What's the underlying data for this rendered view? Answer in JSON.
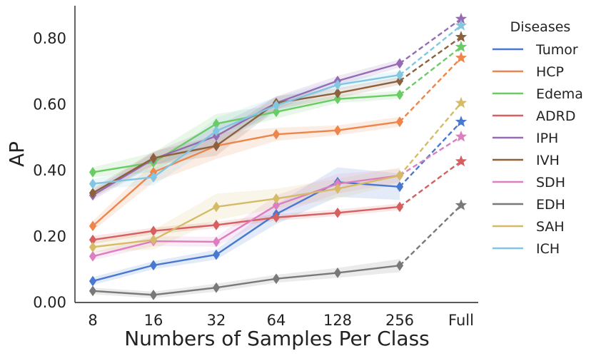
{
  "chart_data": {
    "type": "line",
    "title": "",
    "xlabel": "Numbers of Samples Per Class",
    "ylabel": "AP",
    "categories": [
      "8",
      "16",
      "32",
      "64",
      "128",
      "256",
      "Full"
    ],
    "ylim": [
      0.0,
      0.9
    ],
    "yticks": [
      0.0,
      0.2,
      0.4,
      0.6,
      0.8
    ],
    "ytick_labels": [
      "0.00",
      "0.20",
      "0.40",
      "0.60",
      "0.80"
    ],
    "grid": false,
    "legend": {
      "title": "Diseases",
      "placement": "right-outside"
    },
    "note": "Solid lines with diamond markers for 8-256 samples; dashed line to star marker for Full; shaded bands show variability.",
    "series": [
      {
        "name": "Tumor",
        "color": "#4878d0",
        "values": [
          0.065,
          0.113,
          0.145,
          0.268,
          0.365,
          0.351,
          0.548
        ],
        "band": [
          0.012,
          0.012,
          0.015,
          0.03,
          0.045,
          0.04
        ]
      },
      {
        "name": "HCP",
        "color": "#ee854a",
        "values": [
          0.232,
          0.395,
          0.475,
          0.51,
          0.522,
          0.548,
          0.742
        ],
        "band": [
          0.015,
          0.03,
          0.04,
          0.02,
          0.015,
          0.015
        ]
      },
      {
        "name": "Edema",
        "color": "#6acc64",
        "values": [
          0.395,
          0.425,
          0.542,
          0.578,
          0.617,
          0.63,
          0.775
        ],
        "band": [
          0.015,
          0.03,
          0.03,
          0.02,
          0.012,
          0.012
        ]
      },
      {
        "name": "ADRD",
        "color": "#d65f5f",
        "values": [
          0.19,
          0.217,
          0.235,
          0.258,
          0.272,
          0.29,
          0.428
        ],
        "band": [
          0.012,
          0.01,
          0.01,
          0.01,
          0.01,
          0.01
        ]
      },
      {
        "name": "IPH",
        "color": "#956cb4",
        "values": [
          0.325,
          0.435,
          0.505,
          0.605,
          0.672,
          0.725,
          0.86
        ],
        "band": [
          0.015,
          0.02,
          0.03,
          0.02,
          0.015,
          0.012
        ]
      },
      {
        "name": "IVH",
        "color": "#8c613c",
        "values": [
          0.332,
          0.438,
          0.475,
          0.605,
          0.635,
          0.672,
          0.805
        ],
        "band": [
          0.015,
          0.02,
          0.03,
          0.02,
          0.015,
          0.012
        ]
      },
      {
        "name": "SDH",
        "color": "#dc7ec0",
        "values": [
          0.14,
          0.186,
          0.184,
          0.295,
          0.36,
          0.385,
          0.503
        ],
        "band": [
          0.012,
          0.015,
          0.015,
          0.03,
          0.03,
          0.02
        ]
      },
      {
        "name": "EDH",
        "color": "#797979",
        "values": [
          0.035,
          0.023,
          0.045,
          0.072,
          0.09,
          0.112,
          0.295
        ],
        "band": [
          0.01,
          0.01,
          0.012,
          0.012,
          0.015,
          0.02
        ]
      },
      {
        "name": "SAH",
        "color": "#d5bb67",
        "values": [
          0.168,
          0.19,
          0.29,
          0.315,
          0.345,
          0.385,
          0.605
        ],
        "band": [
          0.015,
          0.03,
          0.04,
          0.03,
          0.03,
          0.025
        ]
      },
      {
        "name": "ICH",
        "color": "#82c6e2",
        "values": [
          0.36,
          0.38,
          0.52,
          0.598,
          0.66,
          0.69,
          0.84
        ],
        "band": [
          0.015,
          0.025,
          0.04,
          0.025,
          0.015,
          0.012
        ]
      }
    ]
  }
}
